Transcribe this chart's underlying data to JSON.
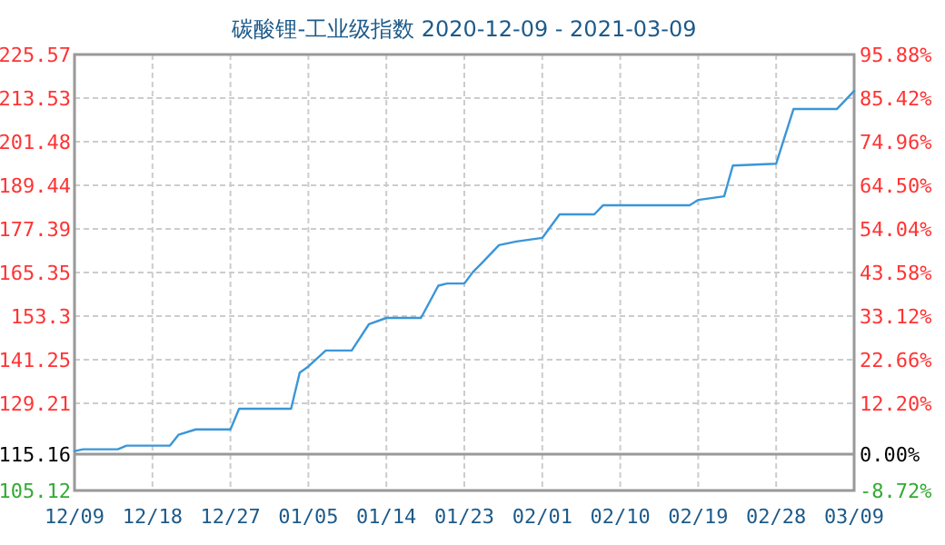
{
  "chart_data": {
    "type": "line",
    "title": "碳酸锂-工业级指数 2020-12-09 - 2021-03-09",
    "x": [
      "2020-12-09",
      "2020-12-10",
      "2020-12-14",
      "2020-12-15",
      "2020-12-20",
      "2020-12-21",
      "2020-12-23",
      "2020-12-27",
      "2020-12-28",
      "2021-01-03",
      "2021-01-04",
      "2021-01-05",
      "2021-01-07",
      "2021-01-10",
      "2021-01-12",
      "2021-01-14",
      "2021-01-18",
      "2021-01-20",
      "2021-01-21",
      "2021-01-23",
      "2021-01-24",
      "2021-01-25",
      "2021-01-27",
      "2021-01-29",
      "2021-02-01",
      "2021-02-03",
      "2021-02-07",
      "2021-02-08",
      "2021-02-18",
      "2021-02-19",
      "2021-02-22",
      "2021-02-23",
      "2021-02-28",
      "2021-03-02",
      "2021-03-07",
      "2021-03-09"
    ],
    "series": [
      {
        "color": "#3a96d8",
        "values": [
          116.0,
          116.5,
          116.5,
          117.5,
          117.5,
          120.5,
          122.0,
          122.0,
          127.7,
          127.7,
          137.7,
          139.4,
          143.8,
          143.8,
          151.1,
          152.8,
          152.8,
          161.7,
          162.3,
          162.3,
          165.5,
          167.9,
          172.9,
          173.9,
          174.9,
          181.4,
          181.4,
          183.9,
          183.9,
          185.4,
          186.4,
          194.9,
          195.4,
          210.5,
          210.5,
          215.5
        ]
      }
    ],
    "xlim": [
      "2020-12-09",
      "2021-03-09"
    ],
    "xticks": [
      {
        "value": "2020-12-09",
        "label": "12/09"
      },
      {
        "value": "2020-12-18",
        "label": "12/18"
      },
      {
        "value": "2020-12-27",
        "label": "12/27"
      },
      {
        "value": "2021-01-05",
        "label": "01/05"
      },
      {
        "value": "2021-01-14",
        "label": "01/14"
      },
      {
        "value": "2021-01-23",
        "label": "01/23"
      },
      {
        "value": "2021-02-01",
        "label": "02/01"
      },
      {
        "value": "2021-02-10",
        "label": "02/10"
      },
      {
        "value": "2021-02-19",
        "label": "02/19"
      },
      {
        "value": "2021-02-28",
        "label": "02/28"
      },
      {
        "value": "2021-03-09",
        "label": "03/09"
      }
    ],
    "ylim": [
      105.12,
      225.57
    ],
    "yticks": [
      105.12,
      115.16,
      129.21,
      141.25,
      153.3,
      165.35,
      177.39,
      189.44,
      201.48,
      213.53,
      225.57
    ],
    "y2lim": [
      -8.72,
      95.88
    ],
    "y2ticks": [
      {
        "value": -8.72,
        "label": "-8.72%"
      },
      {
        "value": 0,
        "label": "0.00%"
      },
      {
        "value": 12.2,
        "label": "12.20%"
      },
      {
        "value": 22.66,
        "label": "22.66%"
      },
      {
        "value": 33.12,
        "label": "33.12%"
      },
      {
        "value": 43.58,
        "label": "43.58%"
      },
      {
        "value": 54.04,
        "label": "54.04%"
      },
      {
        "value": 64.5,
        "label": "64.50%"
      },
      {
        "value": 74.96,
        "label": "74.96%"
      },
      {
        "value": 85.42,
        "label": "85.42%"
      },
      {
        "value": 95.88,
        "label": "95.88%"
      }
    ],
    "ref_lines": [
      {
        "axis": "y",
        "value": 115.16,
        "color": "#999999"
      }
    ],
    "grid": true,
    "marker": "none",
    "line_style": "solid"
  }
}
